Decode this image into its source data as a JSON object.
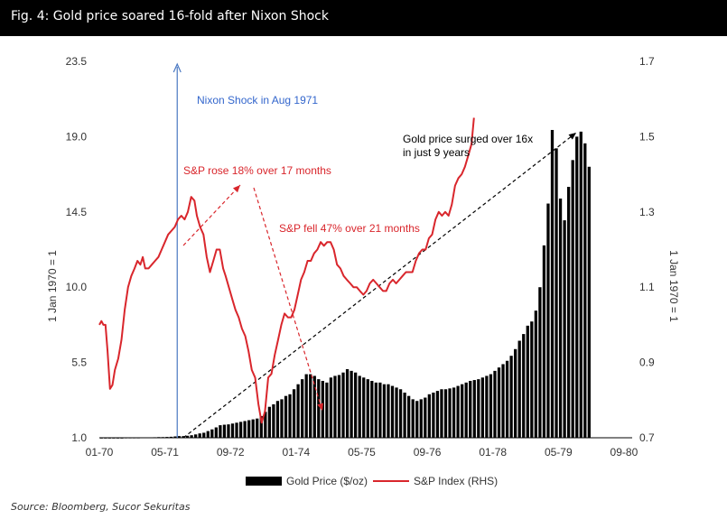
{
  "figure": {
    "title": "Fig. 4: Gold price soared 16-fold after Nixon Shock",
    "source": "Source: Bloomberg, Sucor Sekuritas"
  },
  "colors": {
    "gold_bars": "#000000",
    "sp_line": "#d9262c",
    "nixon_line": "#4a78c2",
    "nixon_text": "#3366cc",
    "annotation_red": "#d9262c"
  },
  "chart_data": {
    "type": "bar",
    "x_tick_labels": [
      "01-70",
      "05-71",
      "09-72",
      "01-74",
      "05-75",
      "09-76",
      "01-78",
      "05-79",
      "09-80"
    ],
    "ylabel_left": "1 Jan 1970 = 1",
    "ylabel_right": "1 Jan 1970 = 1",
    "ylim_left": [
      1.0,
      23.5
    ],
    "yticks_left": [
      "1.0",
      "5.5",
      "10.0",
      "14.5",
      "19.0",
      "23.5"
    ],
    "ylim_right": [
      0.7,
      1.7
    ],
    "yticks_right": [
      "0.7",
      "0.9",
      "1.1",
      "1.3",
      "1.5",
      "1.7"
    ],
    "legend_position": "bottom-center",
    "grid": false,
    "series": [
      {
        "name": "Gold Price ($/oz)",
        "type": "bar",
        "axis": "left",
        "values": [
          1.0,
          1.0,
          1.0,
          1.0,
          1.0,
          1.0,
          1.01,
          1.01,
          1.01,
          1.01,
          1.02,
          1.02,
          1.02,
          1.03,
          1.04,
          1.04,
          1.05,
          1.06,
          1.08,
          1.1,
          1.1,
          1.12,
          1.15,
          1.2,
          1.26,
          1.3,
          1.4,
          1.5,
          1.62,
          1.75,
          1.78,
          1.8,
          1.85,
          1.9,
          1.95,
          2.0,
          2.05,
          2.1,
          2.15,
          2.3,
          2.55,
          2.85,
          3.0,
          3.2,
          3.3,
          3.5,
          3.6,
          3.9,
          4.2,
          4.5,
          4.8,
          4.8,
          4.7,
          4.5,
          4.4,
          4.3,
          4.6,
          4.7,
          4.75,
          4.9,
          5.1,
          5.0,
          4.9,
          4.7,
          4.6,
          4.5,
          4.4,
          4.3,
          4.3,
          4.2,
          4.2,
          4.1,
          4.0,
          3.9,
          3.7,
          3.5,
          3.3,
          3.2,
          3.3,
          3.4,
          3.6,
          3.7,
          3.8,
          3.9,
          3.9,
          3.95,
          4.0,
          4.1,
          4.2,
          4.3,
          4.4,
          4.45,
          4.5,
          4.6,
          4.7,
          4.8,
          5.0,
          5.2,
          5.4,
          5.6,
          5.9,
          6.3,
          6.8,
          7.2,
          7.7,
          7.95,
          8.6,
          10.0,
          12.5,
          15.0,
          19.4,
          18.3,
          15.3,
          14.0,
          16.0,
          17.6,
          19.0,
          19.3,
          18.6,
          17.2
        ]
      },
      {
        "name": "S&P Index (RHS)",
        "type": "line",
        "axis": "right",
        "points": [
          [
            0.0,
            1.0
          ],
          [
            0.5,
            1.01
          ],
          [
            1.0,
            1.0
          ],
          [
            1.5,
            1.0
          ],
          [
            2.0,
            0.93
          ],
          [
            2.6,
            0.83
          ],
          [
            3.2,
            0.84
          ],
          [
            3.8,
            0.88
          ],
          [
            4.6,
            0.91
          ],
          [
            5.4,
            0.96
          ],
          [
            6.2,
            1.04
          ],
          [
            7.0,
            1.1
          ],
          [
            7.8,
            1.13
          ],
          [
            8.6,
            1.15
          ],
          [
            9.3,
            1.17
          ],
          [
            10.0,
            1.16
          ],
          [
            10.6,
            1.18
          ],
          [
            11.2,
            1.15
          ],
          [
            12.0,
            1.15
          ],
          [
            12.8,
            1.16
          ],
          [
            13.6,
            1.17
          ],
          [
            14.4,
            1.18
          ],
          [
            15.2,
            1.2
          ],
          [
            16.0,
            1.22
          ],
          [
            16.8,
            1.24
          ],
          [
            17.6,
            1.25
          ],
          [
            18.4,
            1.26
          ],
          [
            19.2,
            1.28
          ],
          [
            20.0,
            1.29
          ],
          [
            20.8,
            1.28
          ],
          [
            21.6,
            1.3
          ],
          [
            22.4,
            1.34
          ],
          [
            23.2,
            1.33
          ],
          [
            23.8,
            1.29
          ],
          [
            24.6,
            1.26
          ],
          [
            25.4,
            1.24
          ],
          [
            26.2,
            1.18
          ],
          [
            27.0,
            1.14
          ],
          [
            27.8,
            1.17
          ],
          [
            28.6,
            1.2
          ],
          [
            29.4,
            1.2
          ],
          [
            30.2,
            1.15
          ],
          [
            30.8,
            1.13
          ],
          [
            31.6,
            1.1
          ],
          [
            32.4,
            1.07
          ],
          [
            33.2,
            1.04
          ],
          [
            34.0,
            1.02
          ],
          [
            34.8,
            0.99
          ],
          [
            35.6,
            0.97
          ],
          [
            36.4,
            0.93
          ],
          [
            37.2,
            0.88
          ],
          [
            38.0,
            0.86
          ],
          [
            38.8,
            0.79
          ],
          [
            39.6,
            0.74
          ],
          [
            40.4,
            0.77
          ],
          [
            41.2,
            0.86
          ],
          [
            42.0,
            0.87
          ],
          [
            42.8,
            0.92
          ],
          [
            43.6,
            0.96
          ],
          [
            44.4,
            1.0
          ],
          [
            45.2,
            1.03
          ],
          [
            46.0,
            1.02
          ],
          [
            46.8,
            1.02
          ],
          [
            47.6,
            1.04
          ],
          [
            48.4,
            1.08
          ],
          [
            49.2,
            1.12
          ],
          [
            50.0,
            1.14
          ],
          [
            50.8,
            1.17
          ],
          [
            51.6,
            1.17
          ],
          [
            52.4,
            1.19
          ],
          [
            53.2,
            1.2
          ],
          [
            54.0,
            1.22
          ],
          [
            54.8,
            1.21
          ],
          [
            55.6,
            1.22
          ],
          [
            56.4,
            1.22
          ],
          [
            57.2,
            1.2
          ],
          [
            58.0,
            1.16
          ],
          [
            58.8,
            1.15
          ],
          [
            59.6,
            1.13
          ],
          [
            60.4,
            1.12
          ],
          [
            61.2,
            1.11
          ],
          [
            62.0,
            1.1
          ],
          [
            62.8,
            1.1
          ],
          [
            63.6,
            1.09
          ],
          [
            64.4,
            1.08
          ],
          [
            65.2,
            1.09
          ],
          [
            66.0,
            1.11
          ],
          [
            66.8,
            1.12
          ],
          [
            67.6,
            1.11
          ],
          [
            68.4,
            1.1
          ],
          [
            69.2,
            1.09
          ],
          [
            70.0,
            1.09
          ],
          [
            70.8,
            1.11
          ],
          [
            71.6,
            1.12
          ],
          [
            72.4,
            1.11
          ],
          [
            73.2,
            1.12
          ],
          [
            74.0,
            1.13
          ],
          [
            74.8,
            1.14
          ],
          [
            75.6,
            1.14
          ],
          [
            76.4,
            1.14
          ],
          [
            77.2,
            1.17
          ],
          [
            78.0,
            1.19
          ],
          [
            78.8,
            1.2
          ],
          [
            79.6,
            1.2
          ],
          [
            80.4,
            1.23
          ],
          [
            81.2,
            1.24
          ],
          [
            82.0,
            1.28
          ],
          [
            82.8,
            1.3
          ],
          [
            83.6,
            1.29
          ],
          [
            84.4,
            1.3
          ],
          [
            85.2,
            1.29
          ],
          [
            86.0,
            1.32
          ],
          [
            86.8,
            1.37
          ],
          [
            87.6,
            1.39
          ],
          [
            88.4,
            1.4
          ],
          [
            89.2,
            1.42
          ],
          [
            90.0,
            1.45
          ],
          [
            90.8,
            1.48
          ],
          [
            91.4,
            1.55
          ]
        ]
      }
    ],
    "annotations": [
      {
        "text": "Nixon Shock in Aug 1971"
      },
      {
        "text": "S&P rose 18% over 17 months"
      },
      {
        "text": "S&P fell 47% over 21 months"
      },
      {
        "text": "Gold price surged  over 16x"
      },
      {
        "text": "in just 9 years"
      }
    ]
  }
}
